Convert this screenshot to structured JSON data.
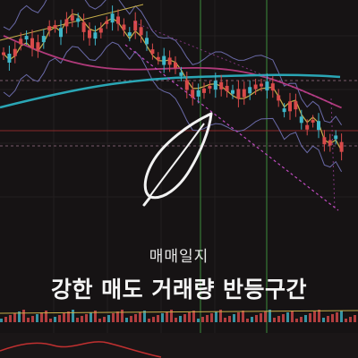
{
  "overlay": {
    "subtitle": "매매일지",
    "title": "강한 매도 거래량 반등구간"
  },
  "icons": {
    "center": "feather-icon"
  },
  "colors": {
    "background": "#161314",
    "candle_up": "#d84a4a",
    "candle_down": "#3fb6c8",
    "ma_short": "#c9b04a",
    "ma_mid": "#b03a7a",
    "ma_long": "#2aa6b5",
    "bollinger": "#6a6aa8",
    "trendline": "#c04bc0",
    "guide_green": "#3c8c3c",
    "guide_red": "#8a2a2a"
  }
}
